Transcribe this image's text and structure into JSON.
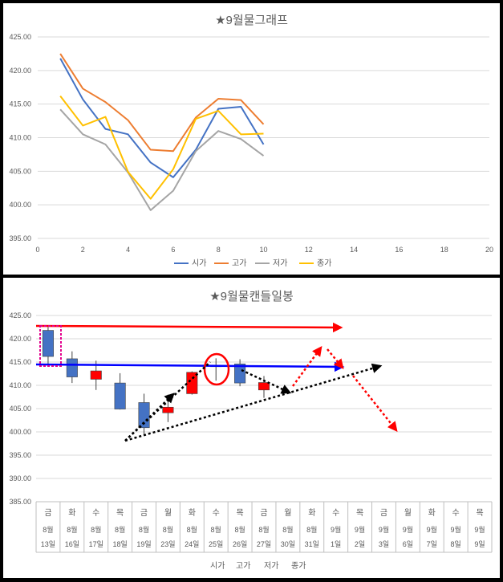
{
  "chart_data": [
    {
      "type": "line",
      "title": "★9월물그래프",
      "ylim": [
        395,
        425
      ],
      "xlim": [
        0,
        20
      ],
      "yticks": [
        "395.00",
        "400.00",
        "405.00",
        "410.00",
        "415.00",
        "420.00",
        "425.00"
      ],
      "xticks": [
        "0",
        "2",
        "4",
        "6",
        "8",
        "10",
        "12",
        "14",
        "16",
        "18",
        "20"
      ],
      "x": [
        1,
        2,
        3,
        4,
        5,
        6,
        7,
        8,
        9,
        10
      ],
      "grid": true,
      "legend": "bottom",
      "series": [
        {
          "name": "시가",
          "color": "#4472C4",
          "values": [
            421.8,
            415.7,
            411.3,
            410.5,
            406.3,
            404.1,
            408.2,
            414.3,
            414.6,
            409.0
          ]
        },
        {
          "name": "고가",
          "color": "#ED7D31",
          "values": [
            422.5,
            417.3,
            415.3,
            412.6,
            408.2,
            408.0,
            413.0,
            415.8,
            415.6,
            412.0
          ]
        },
        {
          "name": "저가",
          "color": "#A5A5A5",
          "values": [
            414.2,
            410.5,
            409.0,
            404.8,
            399.2,
            402.1,
            408.0,
            411.0,
            409.8,
            407.3
          ]
        },
        {
          "name": "종가",
          "color": "#FFC000",
          "values": [
            416.2,
            411.8,
            413.1,
            404.9,
            400.9,
            405.3,
            412.8,
            414.0,
            410.5,
            410.6
          ]
        }
      ]
    },
    {
      "type": "candlestick",
      "title": "★9월물캔들일봉",
      "ylim": [
        385,
        425
      ],
      "yticks": [
        "385.00",
        "390.00",
        "395.00",
        "400.00",
        "405.00",
        "410.00",
        "415.00",
        "420.00",
        "425.00"
      ],
      "grid": true,
      "legend": "bottom",
      "legend_labels": [
        "시가",
        "고가",
        "저가",
        "종가"
      ],
      "categories": [
        {
          "day": "금",
          "month": "8월",
          "date": "13일"
        },
        {
          "day": "화",
          "month": "8월",
          "date": "16일"
        },
        {
          "day": "수",
          "month": "8월",
          "date": "17일"
        },
        {
          "day": "목",
          "month": "8월",
          "date": "18일"
        },
        {
          "day": "금",
          "month": "8월",
          "date": "19일"
        },
        {
          "day": "월",
          "month": "8월",
          "date": "23일"
        },
        {
          "day": "화",
          "month": "8월",
          "date": "24일"
        },
        {
          "day": "수",
          "month": "8월",
          "date": "25일"
        },
        {
          "day": "목",
          "month": "8월",
          "date": "26일"
        },
        {
          "day": "금",
          "month": "8월",
          "date": "27일"
        },
        {
          "day": "월",
          "month": "8월",
          "date": "30일"
        },
        {
          "day": "화",
          "month": "8월",
          "date": "31일"
        },
        {
          "day": "수",
          "month": "9월",
          "date": "1일"
        },
        {
          "day": "목",
          "month": "9월",
          "date": "2일"
        },
        {
          "day": "금",
          "month": "9월",
          "date": "3일"
        },
        {
          "day": "월",
          "month": "9월",
          "date": "6일"
        },
        {
          "day": "화",
          "month": "9월",
          "date": "7일"
        },
        {
          "day": "수",
          "month": "9월",
          "date": "8일"
        },
        {
          "day": "목",
          "month": "9월",
          "date": "9일"
        }
      ],
      "up_color": "#FF0000",
      "down_color": "#4472C4",
      "candles": [
        {
          "open": 421.8,
          "high": 422.5,
          "low": 414.2,
          "close": 416.2
        },
        {
          "open": 415.7,
          "high": 417.3,
          "low": 410.5,
          "close": 411.8
        },
        {
          "open": 411.3,
          "high": 415.3,
          "low": 409.0,
          "close": 413.1
        },
        {
          "open": 410.5,
          "high": 412.6,
          "low": 404.8,
          "close": 404.9
        },
        {
          "open": 406.3,
          "high": 408.2,
          "low": 399.2,
          "close": 400.9
        },
        {
          "open": 404.1,
          "high": 408.0,
          "low": 402.1,
          "close": 405.3
        },
        {
          "open": 408.2,
          "high": 413.0,
          "low": 408.0,
          "close": 412.8
        },
        {
          "open": 414.3,
          "high": 415.8,
          "low": 411.0,
          "close": 414.0
        },
        {
          "open": 414.6,
          "high": 415.6,
          "low": 409.8,
          "close": 410.5
        },
        {
          "open": 409.0,
          "high": 412.0,
          "low": 407.3,
          "close": 410.6
        }
      ]
    }
  ]
}
